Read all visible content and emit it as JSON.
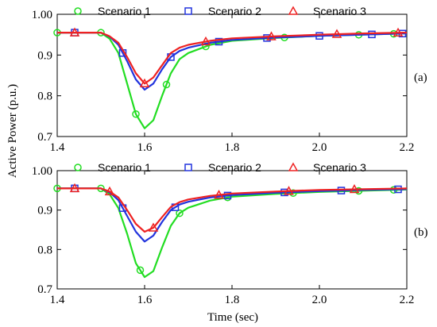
{
  "colors": [
    "#22dd22",
    "#2233dd",
    "#ee2222"
  ],
  "markers": [
    "circle",
    "square",
    "triangle"
  ],
  "xlabel": "Time (sec)",
  "ylabel": "Active Power (p.u.)",
  "xticks": [
    "1.4",
    "1.6",
    "1.8",
    "2.0",
    "2.2"
  ],
  "yticks": [
    "0.7",
    "0.8",
    "0.9",
    "1.00"
  ],
  "chart_data": [
    {
      "type": "line",
      "panel_label": "(a)",
      "xlim": [
        1.4,
        2.2
      ],
      "ylim": [
        0.7,
        1.0
      ],
      "legend": "top",
      "series": [
        {
          "name": "Scenario 1",
          "x": [
            1.4,
            1.5,
            1.52,
            1.54,
            1.56,
            1.58,
            1.6,
            1.62,
            1.64,
            1.66,
            1.68,
            1.7,
            1.75,
            1.8,
            1.9,
            2.0,
            2.1,
            2.2
          ],
          "y": [
            0.955,
            0.955,
            0.94,
            0.905,
            0.83,
            0.755,
            0.72,
            0.74,
            0.8,
            0.855,
            0.89,
            0.905,
            0.925,
            0.935,
            0.942,
            0.947,
            0.95,
            0.953
          ],
          "marker_x": [
            1.4,
            1.5,
            1.58,
            1.65,
            1.74,
            1.92,
            2.09,
            2.17
          ]
        },
        {
          "name": "Scenario 2",
          "x": [
            1.4,
            1.5,
            1.52,
            1.54,
            1.56,
            1.58,
            1.6,
            1.62,
            1.64,
            1.66,
            1.68,
            1.7,
            1.75,
            1.8,
            1.9,
            2.0,
            2.1,
            2.2
          ],
          "y": [
            0.955,
            0.955,
            0.945,
            0.925,
            0.885,
            0.84,
            0.815,
            0.83,
            0.865,
            0.895,
            0.91,
            0.918,
            0.93,
            0.937,
            0.943,
            0.947,
            0.95,
            0.953
          ],
          "marker_x": [
            1.44,
            1.55,
            1.66,
            1.77,
            1.88,
            2.0,
            2.12,
            2.19
          ]
        },
        {
          "name": "Scenario 3",
          "x": [
            1.4,
            1.5,
            1.52,
            1.54,
            1.56,
            1.58,
            1.6,
            1.62,
            1.64,
            1.66,
            1.68,
            1.7,
            1.75,
            1.8,
            1.9,
            2.0,
            2.1,
            2.2
          ],
          "y": [
            0.955,
            0.955,
            0.946,
            0.93,
            0.895,
            0.855,
            0.83,
            0.845,
            0.875,
            0.905,
            0.918,
            0.925,
            0.935,
            0.941,
            0.946,
            0.95,
            0.953,
            0.955
          ],
          "marker_x": [
            1.44,
            1.6,
            1.74,
            1.89,
            2.04,
            2.18
          ]
        }
      ]
    },
    {
      "type": "line",
      "panel_label": "(b)",
      "xlim": [
        1.4,
        2.2
      ],
      "ylim": [
        0.7,
        1.0
      ],
      "legend": "top",
      "series": [
        {
          "name": "Scenario 1",
          "x": [
            1.4,
            1.5,
            1.52,
            1.54,
            1.56,
            1.58,
            1.6,
            1.62,
            1.64,
            1.66,
            1.68,
            1.7,
            1.75,
            1.8,
            1.9,
            2.0,
            2.1,
            2.2
          ],
          "y": [
            0.955,
            0.955,
            0.94,
            0.905,
            0.84,
            0.765,
            0.73,
            0.745,
            0.805,
            0.86,
            0.892,
            0.906,
            0.924,
            0.934,
            0.941,
            0.946,
            0.949,
            0.952
          ],
          "marker_x": [
            1.4,
            1.5,
            1.59,
            1.68,
            1.79,
            1.94,
            2.09,
            2.17
          ]
        },
        {
          "name": "Scenario 2",
          "x": [
            1.4,
            1.5,
            1.52,
            1.54,
            1.56,
            1.58,
            1.6,
            1.62,
            1.64,
            1.66,
            1.68,
            1.7,
            1.75,
            1.8,
            1.9,
            2.0,
            2.1,
            2.2
          ],
          "y": [
            0.955,
            0.955,
            0.945,
            0.925,
            0.885,
            0.845,
            0.82,
            0.835,
            0.87,
            0.9,
            0.914,
            0.921,
            0.932,
            0.938,
            0.944,
            0.948,
            0.951,
            0.953
          ],
          "marker_x": [
            1.44,
            1.55,
            1.67,
            1.79,
            1.92,
            2.05,
            2.18
          ]
        },
        {
          "name": "Scenario 3",
          "x": [
            1.4,
            1.5,
            1.52,
            1.54,
            1.56,
            1.58,
            1.6,
            1.62,
            1.64,
            1.66,
            1.68,
            1.7,
            1.75,
            1.8,
            1.9,
            2.0,
            2.1,
            2.2
          ],
          "y": [
            0.955,
            0.955,
            0.947,
            0.932,
            0.9,
            0.865,
            0.845,
            0.855,
            0.882,
            0.908,
            0.92,
            0.927,
            0.936,
            0.942,
            0.947,
            0.951,
            0.953,
            0.955
          ],
          "marker_x": [
            1.44,
            1.52,
            1.62,
            1.77,
            1.93,
            2.08
          ]
        }
      ]
    }
  ]
}
